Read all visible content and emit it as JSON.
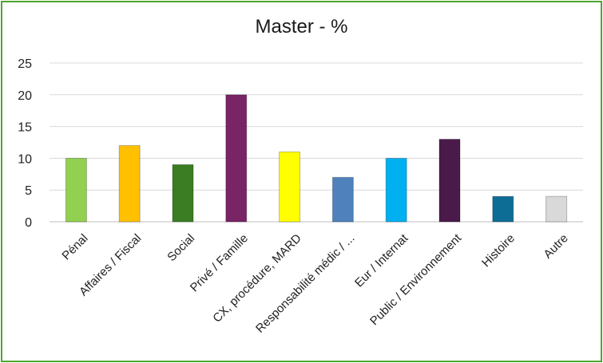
{
  "chart_data": {
    "type": "bar",
    "title": "Master - %",
    "xlabel": "",
    "ylabel": "",
    "ylim": [
      0,
      25
    ],
    "yticks": [
      "0",
      "5",
      "10",
      "15",
      "20",
      "25"
    ],
    "grid": true,
    "legend": "none",
    "categories": [
      "Pénal",
      "Affaires / Fiscal",
      "Social",
      "Privé / Famille",
      "CX, procédure, MARD",
      "Responsabilité médic / ...",
      "Eur / Internat",
      "Public / Environnement",
      "Histoire",
      "Autre"
    ],
    "values": [
      10,
      12,
      9,
      20,
      11,
      7,
      10,
      13,
      4,
      4
    ],
    "colors": [
      "#92d050",
      "#ffc000",
      "#3a7d22",
      "#782465",
      "#ffff00",
      "#4f81bd",
      "#00b0f0",
      "#4a1a4a",
      "#0e6d94",
      "#d9d9d9"
    ],
    "border_color": "#4ea72e"
  }
}
